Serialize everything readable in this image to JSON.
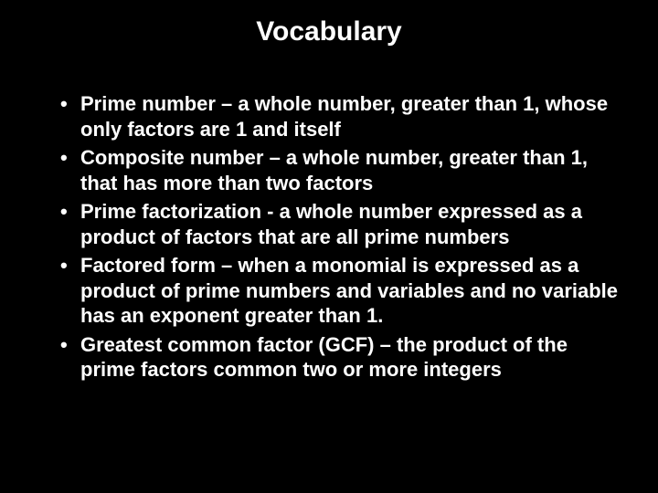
{
  "slide": {
    "background_color": "#000000",
    "text_color": "#ffffff",
    "title": "Vocabulary",
    "title_fontsize": 30,
    "body_fontsize": 22,
    "font_family": "Arial",
    "bullets": [
      "Prime number – a whole number, greater than 1, whose only factors are 1 and itself",
      "Composite number – a whole number, greater than 1, that has more than two factors",
      "Prime factorization - a whole number expressed as a product of factors that are all prime numbers",
      "Factored form – when a monomial is expressed as a product of prime numbers and variables and no variable has an exponent greater than 1.",
      "Greatest common factor (GCF) – the product of the prime factors common two or more integers"
    ]
  }
}
